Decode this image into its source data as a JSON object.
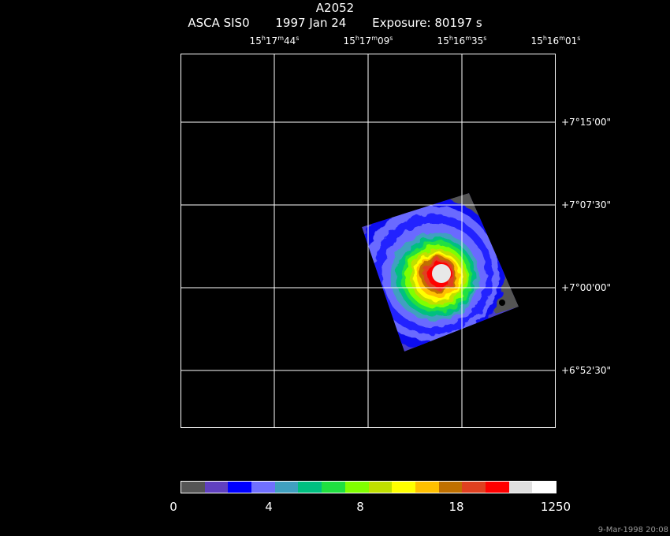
{
  "header": {
    "title": "A2052",
    "instrument": "ASCA SIS0",
    "date": "1997 Jan 24",
    "exposure": "Exposure: 80197 s"
  },
  "ra_labels": [
    {
      "h": "15",
      "m": "17",
      "s": "44"
    },
    {
      "h": "15",
      "m": "17",
      "s": "09"
    },
    {
      "h": "15",
      "m": "16",
      "s": "35"
    },
    {
      "h": "15",
      "m": "16",
      "s": "01"
    }
  ],
  "dec_labels": [
    "+7°15'00\"",
    "+7°07'30\"",
    "+7°00'00\"",
    "+6°52'30\""
  ],
  "colorbar": {
    "colors": [
      "#555555",
      "#6040c0",
      "#0000ff",
      "#7070ff",
      "#40a0c0",
      "#00c080",
      "#20e040",
      "#80ff00",
      "#c0e000",
      "#ffff00",
      "#ffc000",
      "#c07000",
      "#e04020",
      "#ff0000",
      "#e0e0e0",
      "#ffffff"
    ],
    "labels": [
      "0",
      "4",
      "8",
      "18",
      "1250"
    ]
  },
  "footer": {
    "timestamp": "9-Mar-1998 20:08"
  }
}
